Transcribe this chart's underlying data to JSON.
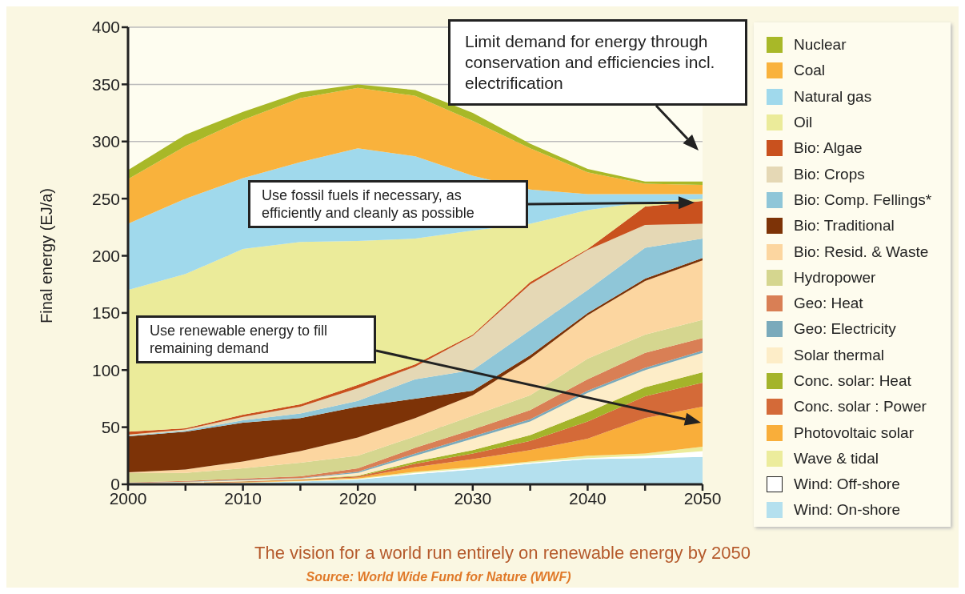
{
  "chart_data": {
    "type": "area",
    "stacked": true,
    "title": "The vision for a world run entirely on renewable energy by 2050",
    "ylabel": "Final energy (EJ/a)",
    "x": [
      2000,
      2005,
      2010,
      2015,
      2020,
      2025,
      2030,
      2035,
      2040,
      2045,
      2050
    ],
    "xlim": [
      2000,
      2050
    ],
    "xticks": [
      2000,
      {
        "value": 2005,
        "label": null
      },
      2010,
      {
        "value": 2015,
        "label": null
      },
      2020,
      {
        "value": 2025,
        "label": null
      },
      2030,
      {
        "value": 2035,
        "label": null
      },
      2040,
      {
        "value": 2045,
        "label": null
      },
      2050
    ],
    "ylim": [
      0,
      400
    ],
    "yticks": [
      0,
      50,
      100,
      150,
      200,
      250,
      300,
      350,
      400
    ],
    "grid": "y",
    "legend": "right",
    "series": [
      {
        "name": "Wind: On-shore",
        "color": "#b4e0ee",
        "values": [
          0.2,
          0.5,
          1,
          2.5,
          4,
          9,
          13,
          18,
          22,
          23,
          24
        ]
      },
      {
        "name": "Wind: Off-shore",
        "color": "#ffffff",
        "values": [
          0.1,
          0.2,
          0.2,
          0.2,
          0.5,
          1,
          1,
          1,
          1,
          2,
          5
        ]
      },
      {
        "name": "Wave & tidal",
        "color": "#ecec9c",
        "values": [
          0.1,
          0.2,
          0.3,
          0.3,
          0.5,
          1,
          1,
          1,
          2,
          2,
          4
        ]
      },
      {
        "name": "Photovoltaic solar",
        "color": "#f9ae3a",
        "values": [
          0.1,
          0.1,
          0.5,
          0.5,
          1,
          4,
          7,
          10,
          15,
          31,
          35
        ]
      },
      {
        "name": "Conc. solar : Power",
        "color": "#d46a38",
        "values": [
          0.1,
          0.2,
          0.5,
          0.5,
          1,
          3,
          5,
          8,
          15,
          19,
          21
        ]
      },
      {
        "name": "Conc. solar: Heat",
        "color": "#a4b42a",
        "values": [
          0.1,
          0.1,
          0.2,
          0.3,
          0.5,
          2,
          3,
          5,
          8,
          8,
          9
        ]
      },
      {
        "name": "Solar thermal",
        "color": "#fdedc8",
        "values": [
          0.3,
          0.7,
          0.8,
          0.7,
          2.5,
          5,
          10,
          12,
          17,
          15,
          17
        ]
      },
      {
        "name": "Geo: Electricity",
        "color": "#7aaabb",
        "values": [
          0.2,
          0.3,
          0.5,
          0.5,
          1,
          2,
          2,
          2,
          2,
          2,
          2
        ]
      },
      {
        "name": "Geo: Heat",
        "color": "#d97f55",
        "values": [
          0.3,
          0.7,
          1,
          1.5,
          3,
          5,
          6,
          8,
          10,
          13,
          11
        ]
      },
      {
        "name": "Hydropower",
        "color": "#d5d68f",
        "values": [
          8.5,
          7,
          9,
          12,
          11,
          10,
          12,
          13,
          18,
          16,
          16
        ]
      },
      {
        "name": "Bio: Resid. & Waste",
        "color": "#fcd6a0",
        "values": [
          0.5,
          3,
          6,
          10,
          16,
          16,
          18,
          32,
          38,
          47,
          52
        ]
      },
      {
        "name": "Bio: Traditional",
        "color": "#7d3307",
        "values": [
          31.5,
          33,
          34,
          29,
          27,
          17,
          4,
          3,
          2,
          2,
          2
        ]
      },
      {
        "name": "Bio: Comp. Fellings*",
        "color": "#8fc6d8",
        "values": [
          0.5,
          1,
          2,
          4,
          5,
          17,
          18,
          22,
          20,
          27,
          17
        ]
      },
      {
        "name": "Bio: Crops",
        "color": "#e5d8b5",
        "values": [
          1,
          1,
          3,
          6,
          11,
          11,
          30,
          40,
          35,
          20,
          13
        ]
      },
      {
        "name": "Bio: Algae",
        "color": "#c9511e",
        "values": [
          2.5,
          1,
          2,
          2,
          3,
          2,
          1,
          2,
          1,
          16,
          20
        ]
      },
      {
        "name": "Oil",
        "color": "#ebeb9a",
        "values": [
          124,
          135,
          145,
          142,
          126,
          110,
          91,
          51,
          34,
          4,
          2
        ]
      },
      {
        "name": "Natural gas",
        "color": "#a0d9ec",
        "values": [
          58,
          66,
          62,
          70,
          81,
          72,
          48,
          30,
          14,
          7,
          4
        ]
      },
      {
        "name": "Coal",
        "color": "#f9b23c",
        "values": [
          39,
          46,
          51,
          56,
          53,
          53,
          48,
          36,
          19,
          9,
          8
        ]
      },
      {
        "name": "Nuclear",
        "color": "#a8b828",
        "values": [
          8,
          10,
          7,
          5,
          3,
          5,
          7,
          4,
          3,
          2,
          3
        ]
      }
    ],
    "annotations": [
      "Limit demand for energy through conservation and efficiencies incl. electrification",
      "Use fossil fuels if necessary, as efficiently and cleanly as possible",
      "Use renewable energy to fill remaining demand",
      "Source: World Wide Fund for Nature (WWF)"
    ]
  }
}
